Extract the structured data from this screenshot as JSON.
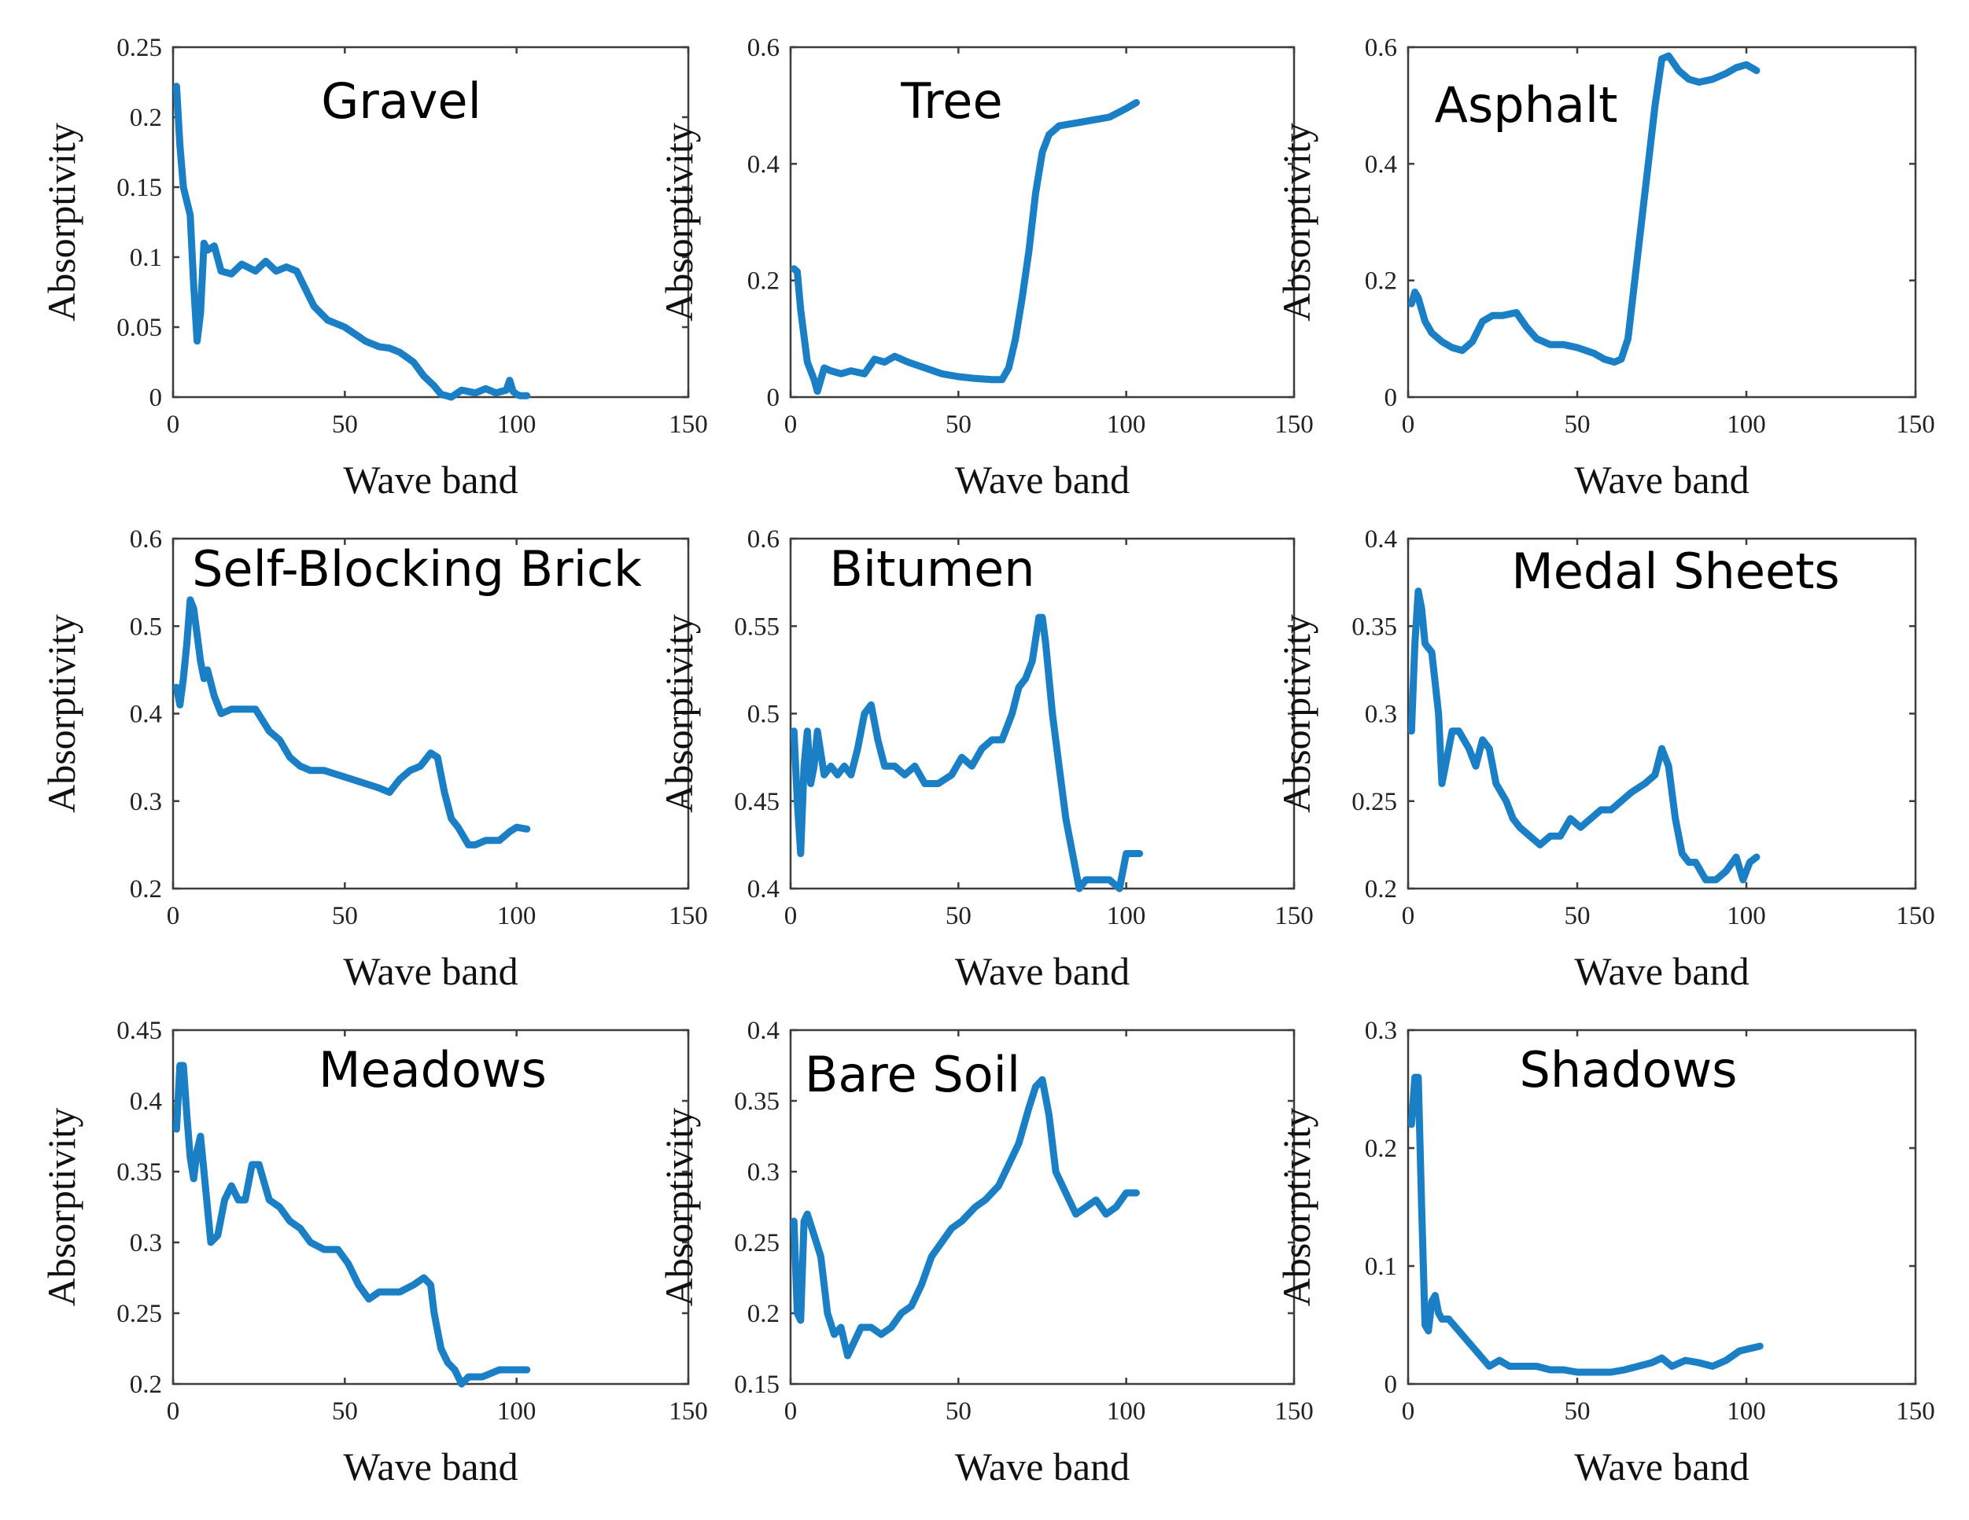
{
  "style": {
    "line_color": "#1a7fc4"
  },
  "chart_data": [
    {
      "type": "line",
      "title": "Gravel",
      "xlabel": "Wave band",
      "ylabel": "Absorptivity",
      "xlim": [
        0,
        150
      ],
      "ylim": [
        0,
        0.25
      ],
      "xticks": [
        "0",
        "50",
        "100",
        "150"
      ],
      "yticks": [
        "0",
        "0.05",
        "0.1",
        "0.15",
        "0.2",
        "0.25"
      ],
      "series": [
        {
          "x": [
            1,
            2,
            3,
            5,
            6,
            7,
            8,
            9,
            10,
            12,
            14,
            17,
            20,
            24,
            27,
            30,
            33,
            36,
            38,
            41,
            45,
            50,
            53,
            56,
            60,
            63,
            66,
            70,
            73,
            76,
            78,
            81,
            84,
            88,
            91,
            94,
            97,
            98,
            99,
            100,
            101,
            103
          ],
          "y": [
            0.222,
            0.18,
            0.15,
            0.13,
            0.08,
            0.04,
            0.06,
            0.11,
            0.105,
            0.108,
            0.09,
            0.088,
            0.095,
            0.09,
            0.097,
            0.09,
            0.093,
            0.09,
            0.08,
            0.065,
            0.055,
            0.05,
            0.045,
            0.04,
            0.036,
            0.035,
            0.032,
            0.025,
            0.015,
            0.008,
            0.002,
            0.0,
            0.005,
            0.003,
            0.006,
            0.003,
            0.005,
            0.012,
            0.004,
            0.002,
            0.001,
            0.001
          ]
        }
      ]
    },
    {
      "type": "line",
      "title": "Tree",
      "xlabel": "Wave band",
      "ylabel": "Absorptivity",
      "xlim": [
        0,
        150
      ],
      "ylim": [
        0,
        0.6
      ],
      "xticks": [
        "0",
        "50",
        "100",
        "150"
      ],
      "yticks": [
        "0",
        "0.2",
        "0.4",
        "0.6"
      ],
      "series": [
        {
          "x": [
            1,
            2,
            3,
            5,
            7,
            8,
            10,
            12,
            15,
            18,
            22,
            25,
            28,
            31,
            35,
            40,
            45,
            50,
            55,
            60,
            63,
            65,
            67,
            69,
            71,
            73,
            75,
            77,
            80,
            85,
            90,
            95,
            100,
            103
          ],
          "y": [
            0.22,
            0.215,
            0.15,
            0.06,
            0.03,
            0.01,
            0.05,
            0.045,
            0.04,
            0.045,
            0.04,
            0.065,
            0.06,
            0.07,
            0.06,
            0.05,
            0.04,
            0.035,
            0.032,
            0.03,
            0.03,
            0.05,
            0.1,
            0.17,
            0.25,
            0.35,
            0.42,
            0.45,
            0.465,
            0.47,
            0.475,
            0.48,
            0.495,
            0.505
          ]
        }
      ]
    },
    {
      "type": "line",
      "title": "Asphalt",
      "xlabel": "Wave band",
      "ylabel": "Absorptivity",
      "xlim": [
        0,
        150
      ],
      "ylim": [
        0,
        0.6
      ],
      "xticks": [
        "0",
        "50",
        "100",
        "150"
      ],
      "yticks": [
        "0",
        "0.2",
        "0.4",
        "0.6"
      ],
      "series": [
        {
          "x": [
            1,
            2,
            3,
            5,
            7,
            10,
            13,
            16,
            19,
            22,
            25,
            28,
            32,
            35,
            38,
            42,
            46,
            50,
            55,
            58,
            61,
            63,
            65,
            67,
            69,
            71,
            73,
            75,
            77,
            80,
            83,
            86,
            90,
            94,
            97,
            100,
            103
          ],
          "y": [
            0.16,
            0.18,
            0.17,
            0.13,
            0.11,
            0.095,
            0.085,
            0.08,
            0.095,
            0.13,
            0.14,
            0.14,
            0.145,
            0.12,
            0.1,
            0.09,
            0.09,
            0.085,
            0.075,
            0.065,
            0.06,
            0.065,
            0.1,
            0.2,
            0.3,
            0.4,
            0.5,
            0.58,
            0.585,
            0.56,
            0.545,
            0.54,
            0.545,
            0.555,
            0.565,
            0.57,
            0.56
          ]
        }
      ]
    },
    {
      "type": "line",
      "title": "Self-Blocking Brick",
      "xlabel": "Wave band",
      "ylabel": "Absorptivity",
      "xlim": [
        0,
        150
      ],
      "ylim": [
        0.2,
        0.6
      ],
      "xticks": [
        "0",
        "50",
        "100",
        "150"
      ],
      "yticks": [
        "0.2",
        "0.3",
        "0.4",
        "0.5",
        "0.6"
      ],
      "series": [
        {
          "x": [
            1,
            2,
            3,
            4,
            5,
            6,
            7,
            8,
            9,
            10,
            12,
            14,
            17,
            20,
            24,
            28,
            31,
            34,
            37,
            40,
            44,
            48,
            52,
            56,
            60,
            63,
            66,
            69,
            72,
            75,
            77,
            79,
            81,
            83,
            86,
            88,
            91,
            95,
            98,
            100,
            103
          ],
          "y": [
            0.43,
            0.41,
            0.44,
            0.48,
            0.53,
            0.52,
            0.49,
            0.46,
            0.44,
            0.45,
            0.42,
            0.4,
            0.405,
            0.405,
            0.405,
            0.38,
            0.37,
            0.35,
            0.34,
            0.335,
            0.335,
            0.33,
            0.325,
            0.32,
            0.315,
            0.31,
            0.325,
            0.335,
            0.34,
            0.355,
            0.35,
            0.31,
            0.28,
            0.27,
            0.25,
            0.25,
            0.255,
            0.255,
            0.265,
            0.27,
            0.268
          ]
        }
      ]
    },
    {
      "type": "line",
      "title": "Bitumen",
      "xlabel": "Wave band",
      "ylabel": "Absorptivity",
      "xlim": [
        0,
        150
      ],
      "ylim": [
        0.4,
        0.6
      ],
      "xticks": [
        "0",
        "50",
        "100",
        "150"
      ],
      "yticks": [
        "0.4",
        "0.45",
        "0.5",
        "0.55",
        "0.6"
      ],
      "series": [
        {
          "x": [
            1,
            2,
            3,
            4,
            5,
            6,
            7,
            8,
            10,
            12,
            14,
            16,
            18,
            20,
            22,
            24,
            26,
            28,
            31,
            34,
            37,
            40,
            44,
            48,
            51,
            54,
            57,
            60,
            63,
            66,
            68,
            70,
            72,
            74,
            75,
            76,
            78,
            80,
            82,
            84,
            86,
            88,
            91,
            95,
            98,
            100,
            102,
            104
          ],
          "y": [
            0.49,
            0.45,
            0.42,
            0.47,
            0.49,
            0.46,
            0.47,
            0.49,
            0.465,
            0.47,
            0.465,
            0.47,
            0.465,
            0.48,
            0.5,
            0.505,
            0.485,
            0.47,
            0.47,
            0.465,
            0.47,
            0.46,
            0.46,
            0.465,
            0.475,
            0.47,
            0.48,
            0.485,
            0.485,
            0.5,
            0.515,
            0.52,
            0.53,
            0.555,
            0.555,
            0.54,
            0.5,
            0.47,
            0.44,
            0.42,
            0.4,
            0.405,
            0.405,
            0.405,
            0.4,
            0.42,
            0.42,
            0.42
          ]
        }
      ]
    },
    {
      "type": "line",
      "title": "Medal Sheets",
      "xlabel": "Wave band",
      "ylabel": "Absorptivity",
      "xlim": [
        0,
        150
      ],
      "ylim": [
        0.2,
        0.4
      ],
      "xticks": [
        "0",
        "50",
        "100",
        "150"
      ],
      "yticks": [
        "0.2",
        "0.25",
        "0.3",
        "0.35",
        "0.4"
      ],
      "series": [
        {
          "x": [
            1,
            2,
            3,
            4,
            5,
            7,
            9,
            10,
            11,
            13,
            15,
            18,
            20,
            22,
            24,
            26,
            29,
            31,
            33,
            36,
            39,
            42,
            45,
            48,
            51,
            54,
            57,
            60,
            63,
            66,
            70,
            73,
            75,
            77,
            79,
            81,
            83,
            85,
            88,
            91,
            94,
            97,
            99,
            101,
            103
          ],
          "y": [
            0.29,
            0.34,
            0.37,
            0.36,
            0.34,
            0.335,
            0.3,
            0.26,
            0.27,
            0.29,
            0.29,
            0.28,
            0.27,
            0.285,
            0.28,
            0.26,
            0.25,
            0.24,
            0.235,
            0.23,
            0.225,
            0.23,
            0.23,
            0.24,
            0.235,
            0.24,
            0.245,
            0.245,
            0.25,
            0.255,
            0.26,
            0.265,
            0.28,
            0.27,
            0.24,
            0.22,
            0.215,
            0.215,
            0.205,
            0.205,
            0.21,
            0.218,
            0.205,
            0.215,
            0.218
          ]
        }
      ]
    },
    {
      "type": "line",
      "title": "Meadows",
      "xlabel": "Wave band",
      "ylabel": "Absorptivity",
      "xlim": [
        0,
        150
      ],
      "ylim": [
        0.2,
        0.45
      ],
      "xticks": [
        "0",
        "50",
        "100",
        "150"
      ],
      "yticks": [
        "0.2",
        "0.25",
        "0.3",
        "0.35",
        "0.4",
        "0.45"
      ],
      "series": [
        {
          "x": [
            1,
            2,
            3,
            4,
            5,
            6,
            7,
            8,
            9,
            11,
            13,
            15,
            17,
            19,
            21,
            23,
            25,
            28,
            31,
            34,
            37,
            40,
            44,
            48,
            51,
            54,
            57,
            60,
            63,
            66,
            70,
            73,
            75,
            76,
            78,
            80,
            82,
            84,
            86,
            90,
            95,
            100,
            103
          ],
          "y": [
            0.38,
            0.425,
            0.425,
            0.39,
            0.36,
            0.345,
            0.365,
            0.375,
            0.35,
            0.3,
            0.305,
            0.33,
            0.34,
            0.33,
            0.33,
            0.355,
            0.355,
            0.33,
            0.325,
            0.315,
            0.31,
            0.3,
            0.295,
            0.295,
            0.285,
            0.27,
            0.26,
            0.265,
            0.265,
            0.265,
            0.27,
            0.275,
            0.27,
            0.25,
            0.225,
            0.215,
            0.21,
            0.2,
            0.205,
            0.205,
            0.21,
            0.21,
            0.21
          ]
        }
      ]
    },
    {
      "type": "line",
      "title": "Bare Soil",
      "xlabel": "Wave band",
      "ylabel": "Absorptivity",
      "xlim": [
        0,
        150
      ],
      "ylim": [
        0.15,
        0.4
      ],
      "xticks": [
        "0",
        "50",
        "100",
        "150"
      ],
      "yticks": [
        "0.15",
        "0.2",
        "0.25",
        "0.3",
        "0.35",
        "0.4"
      ],
      "series": [
        {
          "x": [
            1,
            2,
            3,
            4,
            5,
            7,
            9,
            11,
            13,
            15,
            17,
            19,
            21,
            24,
            27,
            30,
            33,
            36,
            39,
            42,
            45,
            48,
            51,
            55,
            58,
            62,
            65,
            68,
            71,
            73,
            75,
            77,
            79,
            81,
            83,
            85,
            88,
            91,
            94,
            97,
            100,
            103
          ],
          "y": [
            0.265,
            0.2,
            0.195,
            0.265,
            0.27,
            0.255,
            0.24,
            0.2,
            0.185,
            0.19,
            0.17,
            0.18,
            0.19,
            0.19,
            0.185,
            0.19,
            0.2,
            0.205,
            0.22,
            0.24,
            0.25,
            0.26,
            0.265,
            0.275,
            0.28,
            0.29,
            0.305,
            0.32,
            0.345,
            0.36,
            0.365,
            0.34,
            0.3,
            0.29,
            0.28,
            0.27,
            0.275,
            0.28,
            0.27,
            0.275,
            0.285,
            0.285
          ]
        }
      ]
    },
    {
      "type": "line",
      "title": "Shadows",
      "xlabel": "Wave band",
      "ylabel": "Absorptivity",
      "xlim": [
        0,
        150
      ],
      "ylim": [
        0,
        0.3
      ],
      "xticks": [
        "0",
        "50",
        "100",
        "150"
      ],
      "yticks": [
        "0",
        "0.1",
        "0.2",
        "0.3"
      ],
      "series": [
        {
          "x": [
            1,
            2,
            3,
            4,
            5,
            6,
            7,
            8,
            9,
            10,
            12,
            15,
            18,
            21,
            24,
            27,
            30,
            34,
            38,
            42,
            46,
            50,
            55,
            60,
            64,
            68,
            72,
            75,
            78,
            82,
            86,
            90,
            94,
            98,
            101,
            104
          ],
          "y": [
            0.22,
            0.26,
            0.26,
            0.15,
            0.05,
            0.045,
            0.07,
            0.075,
            0.06,
            0.055,
            0.055,
            0.045,
            0.035,
            0.025,
            0.015,
            0.02,
            0.015,
            0.015,
            0.015,
            0.012,
            0.012,
            0.01,
            0.01,
            0.01,
            0.012,
            0.015,
            0.018,
            0.022,
            0.015,
            0.02,
            0.018,
            0.015,
            0.02,
            0.028,
            0.03,
            0.032
          ]
        }
      ]
    }
  ]
}
